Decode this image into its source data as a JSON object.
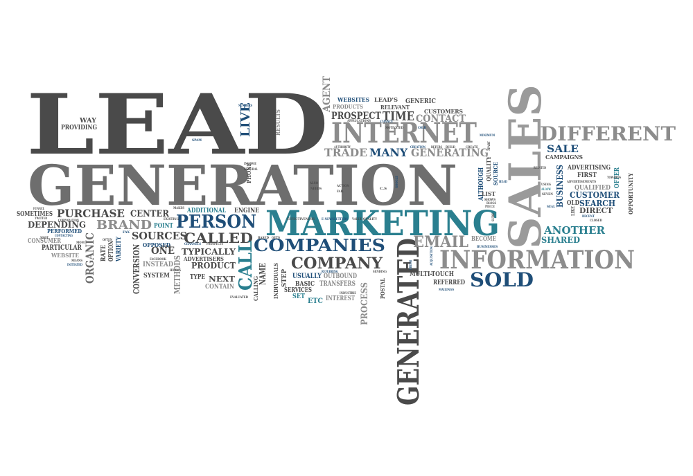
{
  "palette": {
    "dark": "#4a4a4a",
    "gray": "#8c8c8c",
    "teal": "#2a7f8f",
    "navy": "#1f4e78",
    "background": "#ffffff"
  },
  "words": [
    {
      "id": "lead",
      "text": "LEAD"
    },
    {
      "id": "generation",
      "text": "GENERATION"
    },
    {
      "id": "sales",
      "text": "SALES"
    },
    {
      "id": "marketing",
      "text": "MARKETING"
    },
    {
      "id": "internet",
      "text": "INTERNET"
    },
    {
      "id": "information",
      "text": "INFORMATION"
    },
    {
      "id": "generated",
      "text": "GENERATED"
    },
    {
      "id": "different",
      "text": "DIFFERENT"
    },
    {
      "id": "companies",
      "text": "COMPANIES"
    },
    {
      "id": "company",
      "text": "COMPANY"
    },
    {
      "id": "sold",
      "text": "SOLD"
    },
    {
      "id": "email",
      "text": "EMAIL"
    },
    {
      "id": "person",
      "text": "PERSON"
    },
    {
      "id": "called",
      "text": "CALLED"
    },
    {
      "id": "call",
      "text": "CALL"
    },
    {
      "id": "live",
      "text": "LIVE"
    },
    {
      "id": "trade",
      "text": "TRADE"
    },
    {
      "id": "many",
      "text": "MANY"
    },
    {
      "id": "generating",
      "text": "GENERATING"
    },
    {
      "id": "time",
      "text": "TIME"
    },
    {
      "id": "prospect",
      "text": "PROSPECT"
    },
    {
      "id": "contact",
      "text": "CONTACT"
    },
    {
      "id": "agent",
      "text": "AGENT"
    },
    {
      "id": "websites",
      "text": "WEBSITES"
    },
    {
      "id": "leads",
      "text": "LEAD'S"
    },
    {
      "id": "generic",
      "text": "GENERIC"
    },
    {
      "id": "relevant",
      "text": "RELEVANT"
    },
    {
      "id": "products",
      "text": "PRODUCTS"
    },
    {
      "id": "customers",
      "text": "CUSTOMERS"
    },
    {
      "id": "way",
      "text": "WAY"
    },
    {
      "id": "providing",
      "text": "PROVIDING"
    },
    {
      "id": "results",
      "text": "RESULTS"
    },
    {
      "id": "purchase",
      "text": "PURCHASE"
    },
    {
      "id": "center",
      "text": "CENTER"
    },
    {
      "id": "brand",
      "text": "BRAND"
    },
    {
      "id": "sometimes",
      "text": "SOMETIMES"
    },
    {
      "id": "depending",
      "text": "DEPENDING"
    },
    {
      "id": "organic",
      "text": "ORGANIC"
    },
    {
      "id": "sources",
      "text": "SOURCES"
    },
    {
      "id": "one",
      "text": "ONE"
    },
    {
      "id": "typically",
      "text": "TYPICALLY"
    },
    {
      "id": "product",
      "text": "PRODUCT"
    },
    {
      "id": "next",
      "text": "NEXT"
    },
    {
      "id": "contain",
      "text": "CONTAIN"
    },
    {
      "id": "conversion",
      "text": "CONVERSION"
    },
    {
      "id": "methods",
      "text": "METHODS"
    },
    {
      "id": "instead",
      "text": "INSTEAD"
    },
    {
      "id": "system",
      "text": "SYSTEM"
    },
    {
      "id": "additional",
      "text": "ADDITIONAL"
    },
    {
      "id": "opposed",
      "text": "OPPOSED"
    },
    {
      "id": "point",
      "text": "POINT"
    },
    {
      "id": "advertisers",
      "text": "ADVERTISERS"
    },
    {
      "id": "consumer",
      "text": "CONSUMER"
    },
    {
      "id": "particular",
      "text": "PARTICULAR"
    },
    {
      "id": "website",
      "text": "WEBSITE"
    },
    {
      "id": "performed",
      "text": "PERFORMED"
    },
    {
      "id": "rate",
      "text": "RATE"
    },
    {
      "id": "option",
      "text": "OPTION"
    },
    {
      "id": "variety",
      "text": "VARIETY"
    },
    {
      "id": "usually",
      "text": "USUALLY"
    },
    {
      "id": "outbound",
      "text": "OUTBOUND"
    },
    {
      "id": "basic",
      "text": "BASIC"
    },
    {
      "id": "transfers",
      "text": "TRANSFERS"
    },
    {
      "id": "services",
      "text": "SERVICES"
    },
    {
      "id": "interest",
      "text": "INTEREST"
    },
    {
      "id": "etc",
      "text": "ETC"
    },
    {
      "id": "set",
      "text": "SET"
    },
    {
      "id": "step",
      "text": "STEP"
    },
    {
      "id": "name",
      "text": "NAME"
    },
    {
      "id": "calling",
      "text": "CALLING"
    },
    {
      "id": "individuals",
      "text": "INDIVIDUALS"
    },
    {
      "id": "process",
      "text": "PROCESS"
    },
    {
      "id": "postal",
      "text": "POSTAL"
    },
    {
      "id": "multitouch",
      "text": "MULTI-TOUCH"
    },
    {
      "id": "referred",
      "text": "REFERRED"
    },
    {
      "id": "become",
      "text": "BECOME"
    },
    {
      "id": "another",
      "text": "ANOTHER"
    },
    {
      "id": "shared",
      "text": "SHARED"
    },
    {
      "id": "sale",
      "text": "SALE"
    },
    {
      "id": "campaigns",
      "text": "CAMPAIGNS"
    },
    {
      "id": "advertising",
      "text": "ADVERTISING"
    },
    {
      "id": "first",
      "text": "FIRST"
    },
    {
      "id": "customer",
      "text": "CUSTOMER"
    },
    {
      "id": "search",
      "text": "SEARCH"
    },
    {
      "id": "qualified",
      "text": "QUALIFIED"
    },
    {
      "id": "direct",
      "text": "DIRECT"
    },
    {
      "id": "old",
      "text": "OLD"
    },
    {
      "id": "business",
      "text": "BUSINESS"
    },
    {
      "id": "opportunity",
      "text": "OPPORTUNITY"
    },
    {
      "id": "offer",
      "text": "OFFER"
    },
    {
      "id": "quality",
      "text": "QUALITY"
    },
    {
      "id": "although",
      "text": "ALTHOUGH"
    },
    {
      "id": "source",
      "text": "SOURCE"
    },
    {
      "id": "list",
      "text": "LIST"
    },
    {
      "id": "type",
      "text": "TYPE"
    },
    {
      "id": "engine",
      "text": "ENGINE"
    },
    {
      "id": "phone",
      "text": "PHONE"
    },
    {
      "id": "spam",
      "text": "SPAM"
    },
    {
      "id": "numbers",
      "text": "NUMBERS"
    },
    {
      "id": "authority",
      "text": "AUTHORITY"
    },
    {
      "id": "creation",
      "text": "CREATION"
    },
    {
      "id": "minimum",
      "text": "MINIMUM"
    },
    {
      "id": "chance",
      "text": "CHANCE"
    },
    {
      "id": "applications",
      "text": "APPLICATIONS"
    },
    {
      "id": "motivated",
      "text": "MOTIVATED"
    },
    {
      "id": "cold",
      "text": "COLD"
    },
    {
      "id": "action",
      "text": "ACTION"
    },
    {
      "id": "fail",
      "text": "FAIL"
    },
    {
      "id": "means",
      "text": "MEANS"
    },
    {
      "id": "initiated",
      "text": "INITIATED"
    },
    {
      "id": "twitter",
      "text": "TWITTER"
    },
    {
      "id": "contacting",
      "text": "CONTACTING"
    },
    {
      "id": "most",
      "text": "MOST"
    },
    {
      "id": "evaluated",
      "text": "EVALUATED"
    },
    {
      "id": "industrie",
      "text": "INDUSTRIE"
    },
    {
      "id": "mailings",
      "text": "MAILINGS"
    },
    {
      "id": "advertisements",
      "text": "ADVERTISEMENTS"
    },
    {
      "id": "recent",
      "text": "RECENT"
    },
    {
      "id": "closed",
      "text": "CLOSED"
    },
    {
      "id": "towards",
      "text": "TOWARDS"
    },
    {
      "id": "seven",
      "text": "SEVEN"
    },
    {
      "id": "blogs",
      "text": "BLOGS"
    },
    {
      "id": "enewsletters",
      "text": "E-NEWSLETTERS"
    },
    {
      "id": "value_quality",
      "text": "VALUE QUALITY"
    },
    {
      "id": "effectiveness",
      "text": "EFFECTIVENESS"
    },
    {
      "id": "google",
      "text": "GOOGLE"
    },
    {
      "id": "fax",
      "text": "FAX"
    },
    {
      "id": "facebook",
      "text": "FACEBOOK"
    },
    {
      "id": "channels",
      "text": "CHANNELS"
    },
    {
      "id": "makes",
      "text": "MAKES"
    },
    {
      "id": "prospects",
      "text": "PROSPECTS"
    },
    {
      "id": "cs",
      "text": "C.S"
    },
    {
      "id": "refers",
      "text": "REFERS"
    },
    {
      "id": "build",
      "text": "BUILD"
    },
    {
      "id": "create",
      "text": "CREATE"
    },
    {
      "id": "apart",
      "text": "APART"
    },
    {
      "id": "shows",
      "text": "SHOWS"
    },
    {
      "id": "piece",
      "text": "PIECE"
    },
    {
      "id": "sure",
      "text": "SURE"
    },
    {
      "id": "head",
      "text": "HEAD"
    },
    {
      "id": "allow",
      "text": "ALLOW"
    },
    {
      "id": "using",
      "text": "USING"
    },
    {
      "id": "seal",
      "text": "SEAL"
    },
    {
      "id": "like",
      "text": "LIKE"
    },
    {
      "id": "businesses",
      "text": "BUSINESSES"
    },
    {
      "id": "referring",
      "text": "REFERRING"
    },
    {
      "id": "sending",
      "text": "SENDING"
    },
    {
      "id": "fresh",
      "text": "FRESH"
    },
    {
      "id": "acquisition",
      "text": "ACQUISITION"
    },
    {
      "id": "related",
      "text": "RELATED"
    },
    {
      "id": "funnel",
      "text": "FUNNEL"
    },
    {
      "id": "corporation",
      "text": "CORPORATION"
    },
    {
      "id": "mom",
      "text": "MOM"
    },
    {
      "id": "ratio",
      "text": "RATIO"
    },
    {
      "id": "existing",
      "text": "EXISTING"
    },
    {
      "id": "income",
      "text": "INCOME"
    },
    {
      "id": "general",
      "text": "GENERAL"
    },
    {
      "id": "based",
      "text": "BASED"
    },
    {
      "id": "gets",
      "text": "GETS"
    },
    {
      "id": "often",
      "text": "OFTEN"
    },
    {
      "id": "hiring",
      "text": "HIRING"
    },
    {
      "id": "needs",
      "text": "NEEDS"
    },
    {
      "id": "also",
      "text": "ALSO"
    }
  ]
}
